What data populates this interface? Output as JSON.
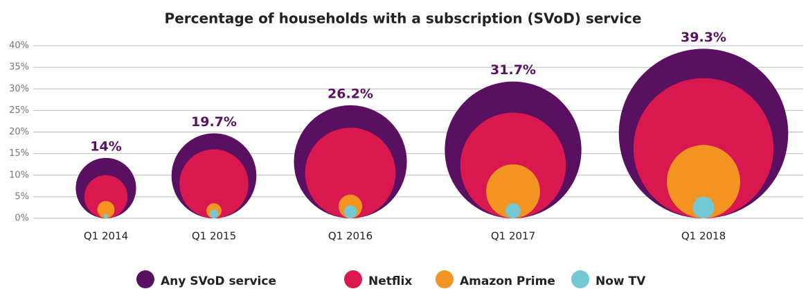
{
  "chart_data": {
    "type": "bubble",
    "title": "Percentage of households with a subscription (SVoD) service",
    "categories": [
      "Q1 2014",
      "Q1 2015",
      "Q1 2016",
      "Q1 2017",
      "Q1 2018"
    ],
    "series": [
      {
        "name": "Any SVoD service",
        "color": "#5a1060",
        "values": [
          14,
          19.7,
          26.2,
          31.7,
          39.3
        ],
        "value_labels": [
          "14%",
          "19.7%",
          "26.2%",
          "31.7%",
          "39.3%"
        ]
      },
      {
        "name": "Netflix",
        "color": "#d9184f",
        "values": [
          10,
          16,
          21,
          24.5,
          32.5
        ]
      },
      {
        "name": "Amazon Prime",
        "color": "#f39422",
        "values": [
          4,
          3.5,
          5.5,
          12.5,
          17
        ]
      },
      {
        "name": "Now TV",
        "color": "#74c8d3",
        "values": [
          1,
          2,
          3,
          3.5,
          5
        ]
      }
    ],
    "ylim": [
      0,
      40
    ],
    "yticks": [
      {
        "value": 0,
        "label": "0%"
      },
      {
        "value": 5,
        "label": "5%"
      },
      {
        "value": 10,
        "label": "10%"
      },
      {
        "value": 15,
        "label": "15%"
      },
      {
        "value": 20,
        "label": "20%"
      },
      {
        "value": 25,
        "label": "25%"
      },
      {
        "value": 30,
        "label": "30%"
      },
      {
        "value": 35,
        "label": "35%"
      },
      {
        "value": 40,
        "label": "40%"
      }
    ],
    "grid": true
  }
}
